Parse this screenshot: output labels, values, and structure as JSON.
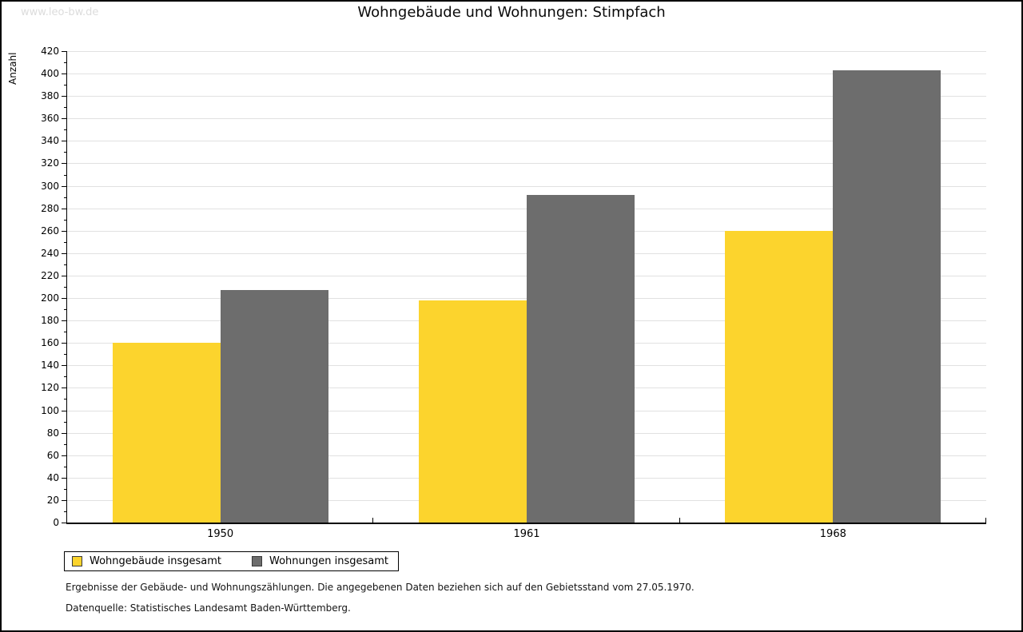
{
  "watermark": "www.leo-bw.de",
  "title": "Wohngebäude und Wohnungen: Stimpfach",
  "chart_data": {
    "type": "bar",
    "title": "Wohngebäude und Wohnungen: Stimpfach",
    "xlabel": "",
    "ylabel": "Anzahl",
    "categories": [
      "1950",
      "1961",
      "1968"
    ],
    "series": [
      {
        "name": "Wohngebäude insgesamt",
        "color": "#fcd42d",
        "values": [
          160,
          198,
          260
        ]
      },
      {
        "name": "Wohnungen insgesamt",
        "color": "#6d6d6d",
        "values": [
          207,
          292,
          403
        ]
      }
    ],
    "ylim": [
      0,
      420
    ],
    "ytick_step": 20,
    "yminor_step": 10,
    "grid": "horizontal-major",
    "legend_position": "bottom-left-boxed"
  },
  "footnotes": {
    "line1": "Ergebnisse der Gebäude- und Wohnungszählungen. Die angegebenen Daten beziehen sich auf den Gebietsstand vom 27.05.1970.",
    "line2": "Datenquelle: Statistisches Landesamt Baden-Württemberg."
  },
  "colors": {
    "background": "#ffffff",
    "page_border": "#000000",
    "axis": "#000000",
    "grid": "#e1e1e1",
    "watermark": "#dcdcdc"
  }
}
